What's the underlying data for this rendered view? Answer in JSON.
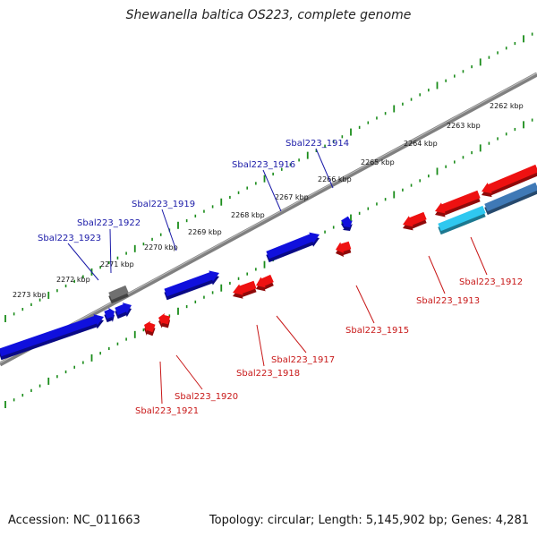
{
  "title": "Shewanella baltica OS223, complete genome",
  "footer": {
    "accession": "Accession: NC_011663",
    "topology": "Topology: circular; Length: 5,145,902 bp; Genes: 4,281"
  },
  "colors": {
    "forward_gene": "#1010dd",
    "reverse_gene": "#ee1111",
    "other_gene": "#707070",
    "rna_gene": "#2fc8f0",
    "rna_gene_2": "#3f79b6",
    "axis": "#808080",
    "tick": "#1a8c1a",
    "forward_label": "#1a1aa8",
    "reverse_label": "#c81818"
  },
  "axis_labels": [
    {
      "text": "2262 kbp",
      "kbp": 2262
    },
    {
      "text": "2263 kbp",
      "kbp": 2263
    },
    {
      "text": "2264 kbp",
      "kbp": 2264
    },
    {
      "text": "2265 kbp",
      "kbp": 2265
    },
    {
      "text": "2266 kbp",
      "kbp": 2266
    },
    {
      "text": "2267 kbp",
      "kbp": 2267
    },
    {
      "text": "2268 kbp",
      "kbp": 2268
    },
    {
      "text": "2269 kbp",
      "kbp": 2269
    },
    {
      "text": "2270 kbp",
      "kbp": 2270
    },
    {
      "text": "2271 kbp",
      "kbp": 2271
    },
    {
      "text": "2272 kbp",
      "kbp": 2272
    },
    {
      "text": "2273 kbp",
      "kbp": 2273
    }
  ],
  "gene_labels_forward": [
    {
      "text": "Sbal223_1914"
    },
    {
      "text": "Sbal223_1916"
    },
    {
      "text": "Sbal223_1919"
    },
    {
      "text": "Sbal223_1922"
    },
    {
      "text": "Sbal223_1923"
    }
  ],
  "gene_labels_reverse": [
    {
      "text": "Sbal223_1912"
    },
    {
      "text": "Sbal223_1913"
    },
    {
      "text": "Sbal223_1915"
    },
    {
      "text": "Sbal223_1917"
    },
    {
      "text": "Sbal223_1918"
    },
    {
      "text": "Sbal223_1920"
    },
    {
      "text": "Sbal223_1921"
    }
  ]
}
